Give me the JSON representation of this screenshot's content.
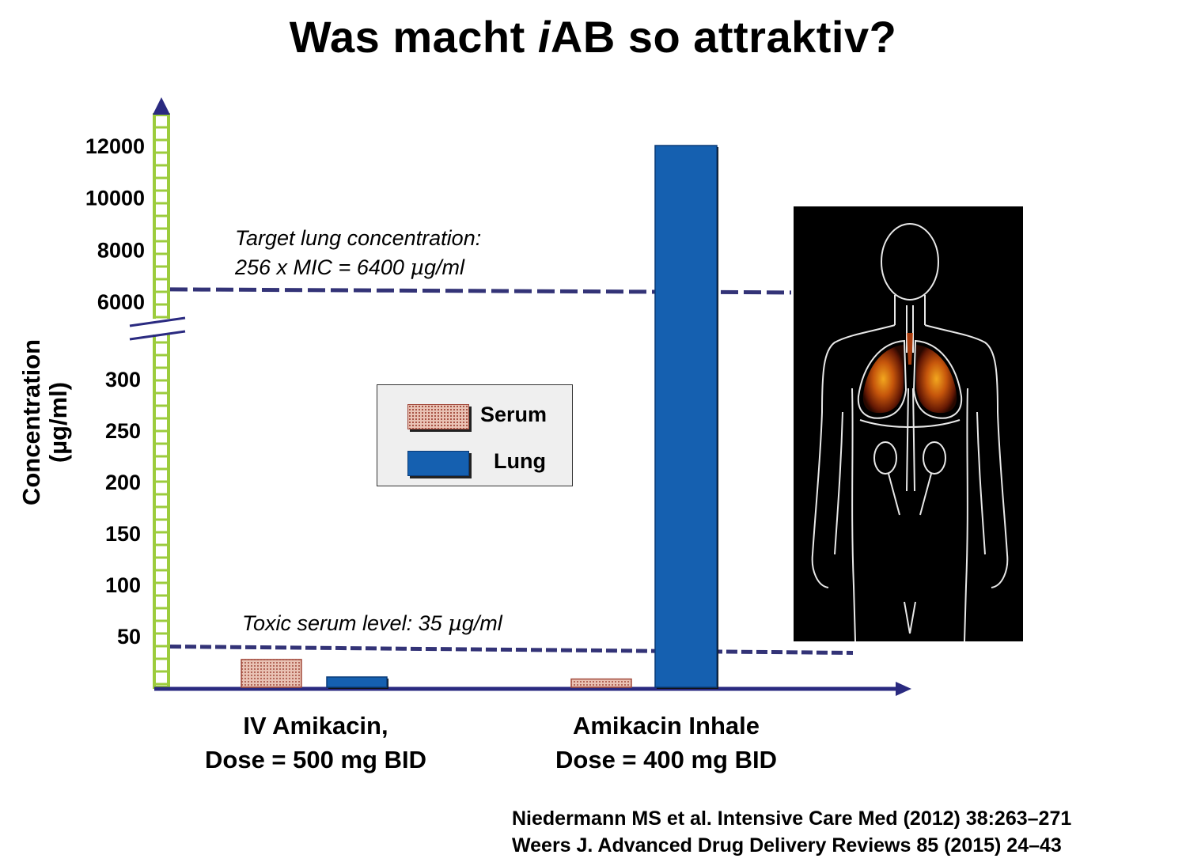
{
  "title": {
    "prefix": "Was macht ",
    "italic": "i",
    "suffix": "AB so attraktiv?"
  },
  "colors": {
    "axis_green": "#9ccc3c",
    "axis_navy": "#2a2a80",
    "serum": "#c98a7a",
    "lung": "#1560b0",
    "dashed_line": "#333377"
  },
  "chart_data": {
    "type": "bar",
    "title": "",
    "ylabel_line1": "Concentration",
    "ylabel_line2": "(µg/ml)",
    "y_axis_broken": true,
    "y_ticks_lower": [
      "50",
      "100",
      "150",
      "200",
      "250",
      "300"
    ],
    "y_ticks_upper": [
      "6000",
      "8000",
      "10000",
      "12000"
    ],
    "categories": [
      {
        "line1": "IV Amikacin,",
        "line2": "Dose = 500 mg BID"
      },
      {
        "line1": "Amikacin Inhale",
        "line2": "Dose = 400 mg BID"
      }
    ],
    "series": [
      {
        "name": "Serum",
        "values": [
          27,
          8
        ]
      },
      {
        "name": "Lung",
        "values": [
          10,
          12000
        ]
      }
    ],
    "legend_position": "center",
    "annotations": {
      "target": {
        "line1": "Target lung concentration:",
        "line2_prefix": "256 x MIC = 6400 ",
        "line2_mu": "µ",
        "line2_suffix": "g/ml",
        "value": 6400
      },
      "toxic": {
        "prefix": "Toxic serum level: 35 ",
        "mu": "µ",
        "suffix": "g/ml",
        "value": 35
      }
    }
  },
  "legend": {
    "serum_label": "Serum",
    "lung_label": "Lung"
  },
  "image": {
    "description_name": "body-lung-scan-image"
  },
  "references": {
    "line1": "Niedermann MS et al. Intensive Care Med (2012) 38:263–271",
    "line2": "Weers J. Advanced Drug Delivery Reviews 85 (2015) 24–43"
  }
}
